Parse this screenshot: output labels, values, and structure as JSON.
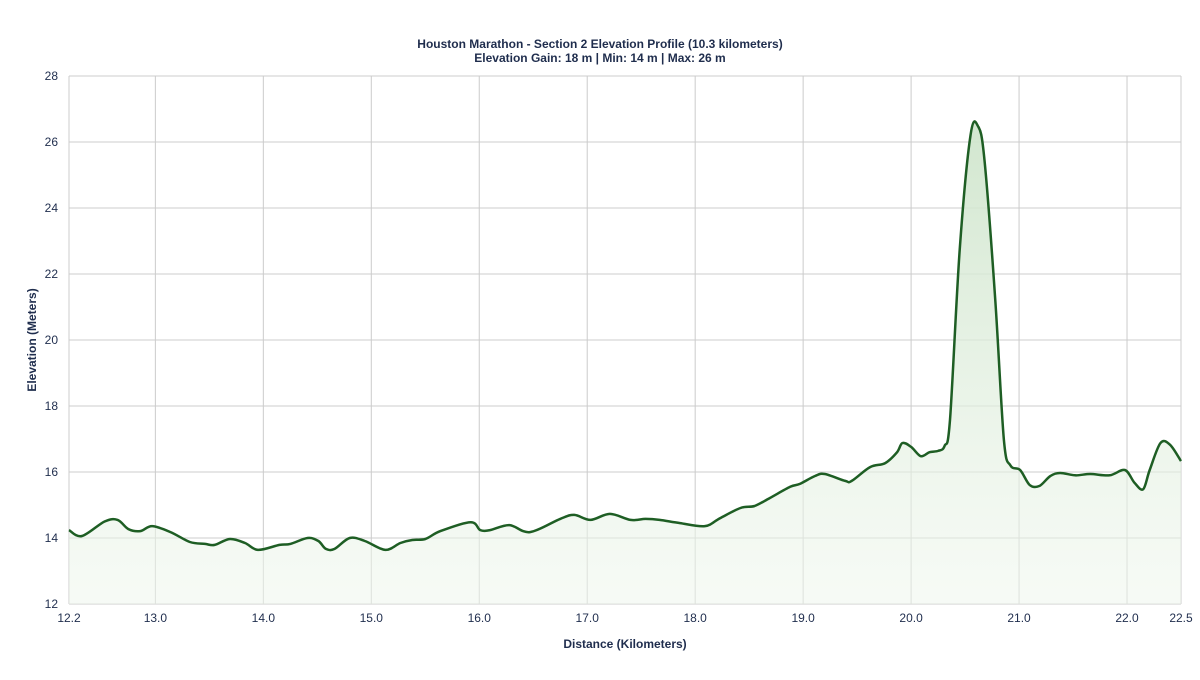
{
  "chart_data": {
    "type": "area",
    "title": "Houston Marathon - Section 2 Elevation Profile (10.3 kilometers)",
    "subtitle": "Elevation Gain: 18 m | Min: 14 m | Max: 26 m",
    "xlabel": "Distance (Kilometers)",
    "ylabel": "Elevation (Meters)",
    "xlim": [
      12.2,
      22.5
    ],
    "ylim": [
      12,
      28
    ],
    "x_ticks": [
      "12.2",
      "13.0",
      "14.0",
      "15.0",
      "16.0",
      "17.0",
      "18.0",
      "19.0",
      "20.0",
      "21.0",
      "22.0",
      "22.5"
    ],
    "y_ticks": [
      "12",
      "14",
      "16",
      "18",
      "20",
      "22",
      "24",
      "26",
      "28"
    ],
    "grid": true,
    "colors": {
      "line": "#1e5e24",
      "fill": "#dcebd9",
      "title": "#1f2d4d",
      "grid": "#cccccc"
    },
    "x": [
      12.2,
      12.32,
      12.53,
      12.65,
      12.75,
      12.86,
      12.97,
      13.14,
      13.32,
      13.46,
      13.55,
      13.69,
      13.83,
      13.95,
      14.15,
      14.25,
      14.41,
      14.51,
      14.58,
      14.66,
      14.8,
      14.94,
      15.13,
      15.27,
      15.38,
      15.5,
      15.64,
      15.92,
      16.01,
      16.1,
      16.28,
      16.47,
      16.75,
      16.88,
      17.03,
      17.21,
      17.4,
      17.54,
      17.67,
      17.86,
      18.09,
      18.23,
      18.42,
      18.55,
      18.69,
      18.88,
      18.97,
      19.11,
      19.2,
      19.39,
      19.45,
      19.62,
      19.76,
      19.87,
      19.92,
      20.0,
      20.09,
      20.17,
      20.25,
      20.31,
      20.36,
      20.45,
      20.55,
      20.62,
      20.68,
      20.78,
      20.86,
      20.92,
      21.01,
      21.1,
      21.19,
      21.29,
      21.38,
      21.52,
      21.66,
      21.84,
      21.98,
      22.07,
      22.15,
      22.21,
      22.31,
      22.4,
      22.5
    ],
    "y": [
      14.24,
      14.06,
      14.5,
      14.55,
      14.27,
      14.21,
      14.36,
      14.18,
      13.88,
      13.82,
      13.79,
      13.97,
      13.85,
      13.64,
      13.79,
      13.82,
      14.0,
      13.91,
      13.67,
      13.67,
      14.0,
      13.91,
      13.64,
      13.85,
      13.94,
      13.97,
      14.21,
      14.48,
      14.24,
      14.24,
      14.39,
      14.18,
      14.58,
      14.7,
      14.55,
      14.73,
      14.55,
      14.58,
      14.55,
      14.45,
      14.36,
      14.6,
      14.91,
      14.97,
      15.21,
      15.55,
      15.64,
      15.88,
      15.94,
      15.73,
      15.73,
      16.15,
      16.27,
      16.6,
      16.88,
      16.76,
      16.48,
      16.6,
      16.64,
      16.79,
      17.58,
      22.73,
      26.2,
      26.48,
      25.45,
      21.2,
      16.97,
      16.2,
      16.06,
      15.6,
      15.58,
      15.88,
      15.97,
      15.9,
      15.94,
      15.9,
      16.06,
      15.67,
      15.48,
      16.06,
      16.88,
      16.82,
      16.33
    ]
  }
}
